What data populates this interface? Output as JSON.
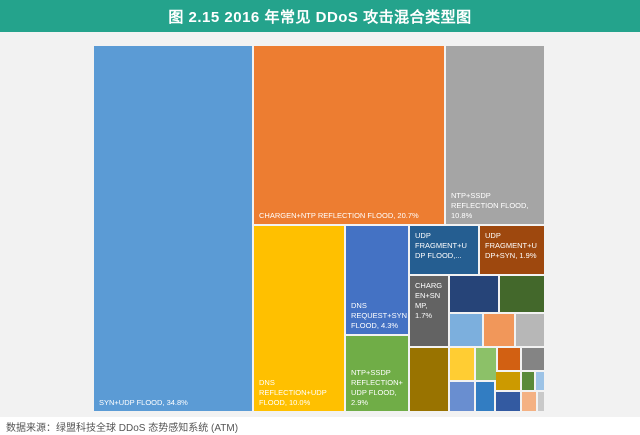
{
  "title": "图 2.15 2016 年常见 DDoS 攻击混合类型图",
  "source": "数据来源：绿盟科技全球 DDoS 态势感知系统 (ATM)",
  "colors": {
    "header_bg": "#24a38c",
    "chart_bg": "#f2f2f2"
  },
  "chart_data": {
    "type": "treemap",
    "title": "图 2.15 2016 年常见 DDoS 攻击混合类型图",
    "items": [
      {
        "labels": [
          "SYN+UDP FLOOD, 34.8%"
        ],
        "value": 34.8,
        "color": "#5b9bd5"
      },
      {
        "labels": [
          "CHARGEN+NTP REFLECTION FLOOD, 20.7%"
        ],
        "value": 20.7,
        "color": "#ed7d31"
      },
      {
        "labels": [
          "NTP+SSDP",
          "REFLECTION FLOOD,",
          "10.8%"
        ],
        "value": 10.8,
        "color": "#a5a5a5"
      },
      {
        "labels": [
          "DNS",
          "REFLECTION+UDP",
          "FLOOD, 10.0%"
        ],
        "value": 10.0,
        "color": "#ffc000"
      },
      {
        "labels": [
          "DNS",
          "REQUEST+SYN",
          "FLOOD, 4.3%"
        ],
        "value": 4.3,
        "color": "#4472c4"
      },
      {
        "labels": [
          "NTP+SSDP",
          "REFLECTION+",
          "UDP FLOOD,",
          "2.9%"
        ],
        "value": 2.9,
        "color": "#70ad47"
      },
      {
        "labels": [
          "UDP",
          "FRAGMENT+U",
          "DP FLOOD,..."
        ],
        "value": 2.5,
        "color": "#255e91"
      },
      {
        "labels": [
          "UDP",
          "FRAGMENT+U",
          "DP+SYN, 1.9%"
        ],
        "value": 1.9,
        "color": "#9e480e"
      },
      {
        "labels": [
          "CHARG",
          "EN+SN",
          "MP,",
          "1.7%"
        ],
        "value": 1.7,
        "color": "#636363"
      },
      {
        "labels": [],
        "value": 1.5,
        "color": "#997300"
      },
      {
        "labels": [],
        "value": 0.9,
        "color": "#264478"
      },
      {
        "labels": [],
        "value": 0.85,
        "color": "#43682b"
      },
      {
        "labels": [],
        "value": 0.75,
        "color": "#7cafdd"
      },
      {
        "labels": [],
        "value": 0.7,
        "color": "#f1975a"
      },
      {
        "labels": [],
        "value": 0.7,
        "color": "#b7b7b7"
      },
      {
        "labels": [],
        "value": 0.55,
        "color": "#ffcd33"
      },
      {
        "labels": [],
        "value": 0.5,
        "color": "#8cc168"
      },
      {
        "labels": [],
        "value": 0.45,
        "color": "#d26012"
      },
      {
        "labels": [],
        "value": 0.4,
        "color": "#848484"
      },
      {
        "labels": [],
        "value": 0.4,
        "color": "#698ed0"
      },
      {
        "labels": [],
        "value": 0.35,
        "color": "#327dc2"
      },
      {
        "labels": [],
        "value": 0.3,
        "color": "#cc9a00"
      },
      {
        "labels": [],
        "value": 0.3,
        "color": "#5a8a39"
      },
      {
        "labels": [],
        "value": 0.25,
        "color": "#9dc3e6"
      },
      {
        "labels": [],
        "value": 0.25,
        "color": "#335aa1"
      },
      {
        "labels": [],
        "value": 0.2,
        "color": "#f4b183"
      },
      {
        "labels": [],
        "value": 0.2,
        "color": "#c9c9c9"
      }
    ]
  }
}
